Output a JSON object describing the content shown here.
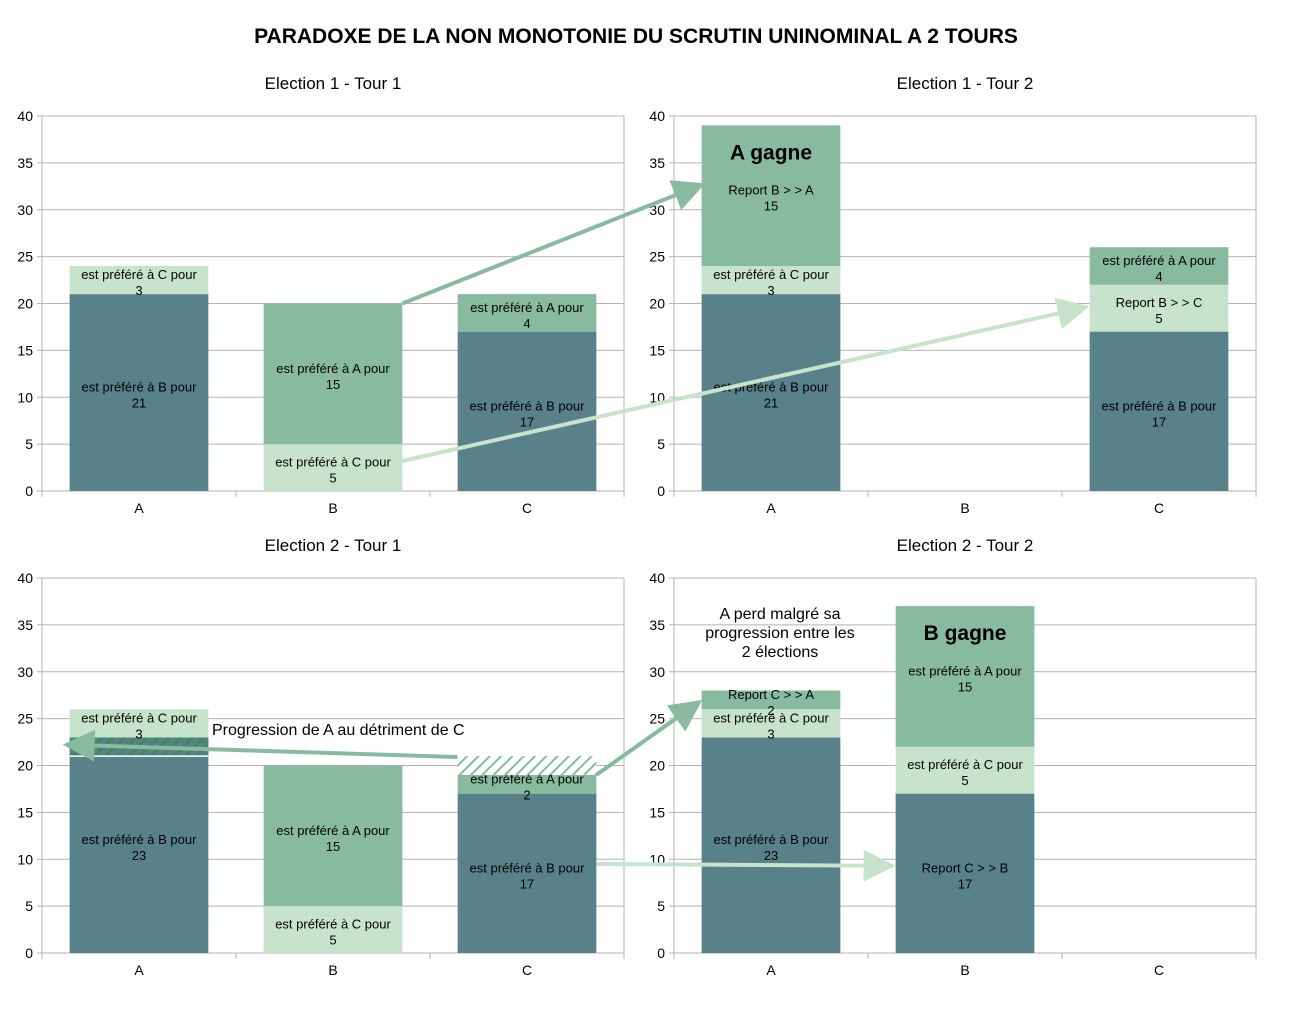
{
  "title": "PARADOXE DE LA NON MONOTONIE DU SCRUTIN UNINOMINAL A 2 TOURS",
  "colors": {
    "dark": "#58818A",
    "mid": "#88BAA0",
    "light": "#C8E3CB",
    "grid": "#b3b3b3",
    "axis": "#b3b3b3"
  },
  "chart_data": [
    {
      "type": "bar",
      "stacked": true,
      "title": "Election 1 - Tour 1",
      "categories": [
        "A",
        "B",
        "C"
      ],
      "ylim": [
        0,
        40
      ],
      "yticks": [
        0,
        5,
        10,
        15,
        20,
        25,
        30,
        35,
        40
      ],
      "bars": [
        [
          {
            "value": 21,
            "color": "dark",
            "label": "est préféré à B pour",
            "label2": "21"
          },
          {
            "value": 3,
            "color": "light",
            "label": "est préféré à C pour",
            "label2": "3"
          }
        ],
        [
          {
            "value": 5,
            "color": "light",
            "label": "est préféré à C pour",
            "label2": "5"
          },
          {
            "value": 15,
            "color": "mid",
            "label": "est préféré à A pour",
            "label2": "15"
          }
        ],
        [
          {
            "value": 17,
            "color": "dark",
            "label": "est préféré à B pour",
            "label2": "17"
          },
          {
            "value": 4,
            "color": "mid",
            "label": "est préféré à A pour",
            "label2": "4"
          }
        ]
      ]
    },
    {
      "type": "bar",
      "stacked": true,
      "title": "Election 1 - Tour 2",
      "categories": [
        "A",
        "B",
        "C"
      ],
      "ylim": [
        0,
        40
      ],
      "yticks": [
        0,
        5,
        10,
        15,
        20,
        25,
        30,
        35,
        40
      ],
      "bars": [
        [
          {
            "value": 21,
            "color": "dark",
            "label": "est préféré à B pour",
            "label2": "21"
          },
          {
            "value": 3,
            "color": "light",
            "label": "est préféré à C pour",
            "label2": "3"
          },
          {
            "value": 15,
            "color": "mid",
            "label": "Report B > > A",
            "label2": "15"
          }
        ],
        [],
        [
          {
            "value": 17,
            "color": "dark",
            "label": "est préféré à B pour",
            "label2": "17"
          },
          {
            "value": 5,
            "color": "light",
            "label": "Report B > > C",
            "label2": "5"
          },
          {
            "value": 4,
            "color": "mid",
            "label": "est préféré à A pour",
            "label2": "4"
          }
        ]
      ],
      "winner": {
        "category": "A",
        "text": "A gagne"
      }
    },
    {
      "type": "bar",
      "stacked": true,
      "title": "Election 2 - Tour 1",
      "categories": [
        "A",
        "B",
        "C"
      ],
      "ylim": [
        0,
        40
      ],
      "yticks": [
        0,
        5,
        10,
        15,
        20,
        25,
        30,
        35,
        40
      ],
      "bars": [
        [
          {
            "value": 23,
            "color": "dark",
            "label": "est préféré à B pour",
            "label2": "23",
            "hatched_top": 2
          },
          {
            "value": 3,
            "color": "light",
            "label": "est préféré à C pour",
            "label2": "3"
          }
        ],
        [
          {
            "value": 5,
            "color": "light",
            "label": "est préféré à C pour",
            "label2": "5"
          },
          {
            "value": 15,
            "color": "mid",
            "label": "est préféré à A pour",
            "label2": "15"
          }
        ],
        [
          {
            "value": 17,
            "color": "dark",
            "label": "est préféré à B pour",
            "label2": "17"
          },
          {
            "value": 2,
            "color": "mid",
            "label": "est préféré à A pour",
            "label2": "2"
          },
          {
            "value": 2,
            "color": "hatch_empty",
            "label": "",
            "label2": ""
          }
        ]
      ],
      "annotation": "Progression de A au détriment de C"
    },
    {
      "type": "bar",
      "stacked": true,
      "title": "Election 2 - Tour 2",
      "categories": [
        "A",
        "B",
        "C"
      ],
      "ylim": [
        0,
        40
      ],
      "yticks": [
        0,
        5,
        10,
        15,
        20,
        25,
        30,
        35,
        40
      ],
      "bars": [
        [
          {
            "value": 23,
            "color": "dark",
            "label": "est préféré à B pour",
            "label2": "23"
          },
          {
            "value": 3,
            "color": "light",
            "label": "est préféré à C pour",
            "label2": "3"
          },
          {
            "value": 2,
            "color": "mid",
            "label": "Report C > > A",
            "label2": "2"
          }
        ],
        [
          {
            "value": 17,
            "color": "dark",
            "label": "Report C > > B",
            "label2": "17"
          },
          {
            "value": 5,
            "color": "light",
            "label": "est préféré à C pour",
            "label2": "5"
          },
          {
            "value": 15,
            "color": "mid",
            "label": "est préféré à A pour",
            "label2": "15"
          }
        ],
        []
      ],
      "winner": {
        "category": "B",
        "text": "B gagne"
      },
      "annotation_lines": [
        "A perd malgré sa",
        "progression entre les",
        "2 élections"
      ]
    }
  ]
}
